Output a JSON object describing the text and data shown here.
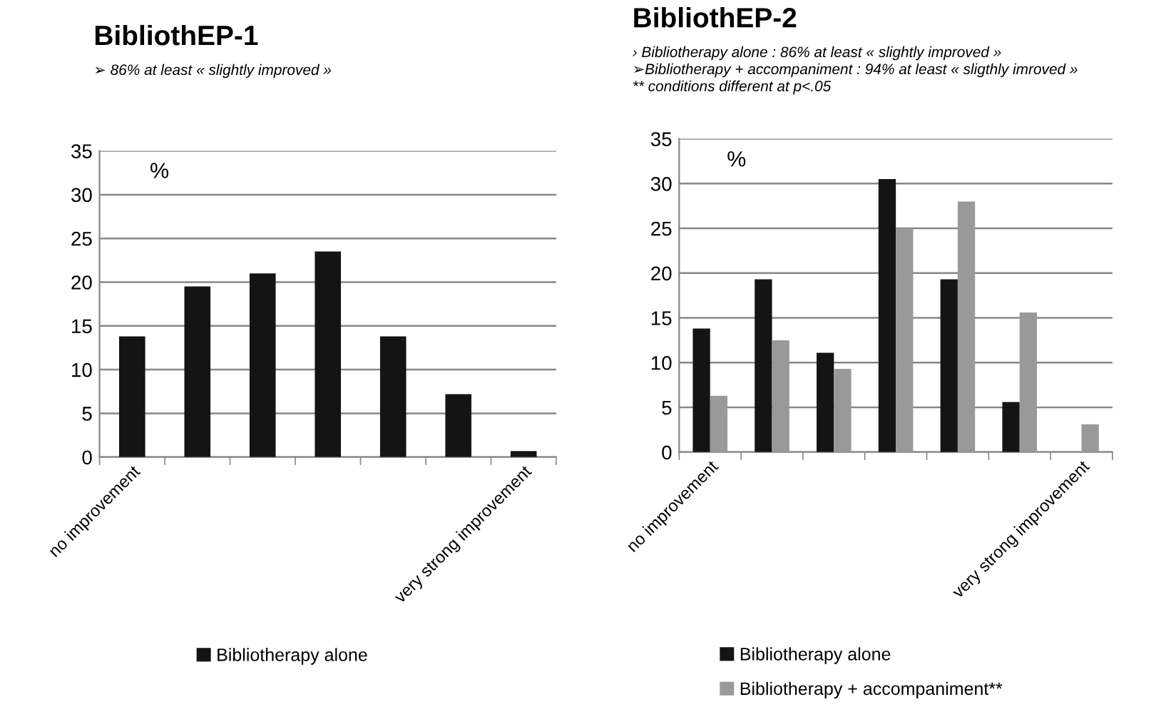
{
  "chart_data": [
    {
      "type": "bar",
      "title": "BibliothEP-1",
      "subtitle": "➢ 86% at least « slightly improved »",
      "annotations": [
        "%"
      ],
      "categories": [
        "no improvement",
        null,
        null,
        null,
        null,
        null,
        "very strong improvement"
      ],
      "series": [
        {
          "name": "Bibliotherapy alone",
          "color": "#141414",
          "values": [
            13.8,
            19.5,
            21,
            23.5,
            13.8,
            7.2,
            0.7
          ]
        }
      ],
      "ylim": [
        0,
        35
      ],
      "yticks": [
        0,
        5,
        10,
        15,
        20,
        25,
        30,
        35
      ],
      "grid": "y",
      "legend": "bottom"
    },
    {
      "type": "bar",
      "title": "BibliothEP-2",
      "subtitle": "› Bibliotherapy alone : 86% at least « slightly improved »\n➢Bibliotherapy + accompaniment : 94% at least « sligthly imroved »\n** conditions different at p<.05",
      "annotations": [
        "%"
      ],
      "categories": [
        "no improvement",
        null,
        null,
        null,
        null,
        null,
        "very strong improvement"
      ],
      "series": [
        {
          "name": "Bibliotherapy alone",
          "color": "#141414",
          "values": [
            13.8,
            19.3,
            11.1,
            30.5,
            19.3,
            5.6,
            null
          ]
        },
        {
          "name": "Bibliotherapy + accompaniment**",
          "color": "#999999",
          "values": [
            6.3,
            12.5,
            9.3,
            25,
            28,
            15.6,
            3.1
          ]
        }
      ],
      "ylim": [
        0,
        35
      ],
      "yticks": [
        0,
        5,
        10,
        15,
        20,
        25,
        30,
        35
      ],
      "grid": "y",
      "legend": "bottom"
    }
  ]
}
